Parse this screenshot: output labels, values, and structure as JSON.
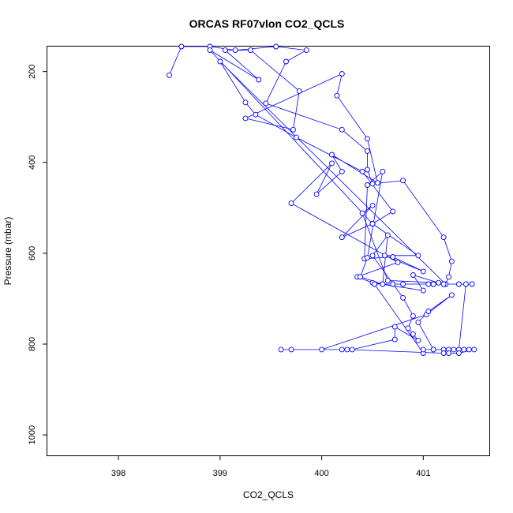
{
  "chart_data": {
    "type": "line",
    "title": "ORCAS RF07vlon CO2_QCLS",
    "xlabel": "CO2_QCLS",
    "ylabel": "Pressure (mbar)",
    "xlim": [
      397.3,
      401.65
    ],
    "ylim": [
      1045,
      145
    ],
    "y_inverted": true,
    "xticks": [
      398,
      399,
      400,
      401
    ],
    "yticks": [
      200,
      400,
      600,
      800,
      1000
    ],
    "grid": false,
    "series": [
      {
        "color": "#0000ff",
        "marker": "open-circle",
        "points": [
          [
            398.5,
            208
          ],
          [
            398.62,
            145
          ],
          [
            398.9,
            145
          ],
          [
            399.15,
            153
          ],
          [
            399.55,
            145
          ],
          [
            399.85,
            153
          ],
          [
            399.65,
            178
          ],
          [
            399.45,
            270
          ],
          [
            400.2,
            328
          ],
          [
            400.45,
            375
          ],
          [
            400.45,
            416
          ],
          [
            400.5,
            447
          ],
          [
            400.8,
            440
          ],
          [
            401.2,
            565
          ],
          [
            401.28,
            618
          ],
          [
            401.25,
            652
          ],
          [
            401.22,
            668
          ],
          [
            399.0,
            178
          ],
          [
            399.25,
            268
          ],
          [
            399.35,
            295
          ],
          [
            399.75,
            345
          ],
          [
            400.4,
            420
          ],
          [
            400.7,
            508
          ],
          [
            400.5,
            535
          ],
          [
            398.9,
            153
          ],
          [
            399.38,
            218
          ],
          [
            399.05,
            153
          ],
          [
            399.3,
            153
          ],
          [
            399.78,
            243
          ],
          [
            399.72,
            328
          ],
          [
            399.25,
            303
          ],
          [
            400.2,
            205
          ],
          [
            400.15,
            253
          ],
          [
            400.45,
            348
          ],
          [
            400.55,
            445
          ],
          [
            400.1,
            383
          ],
          [
            400.2,
            420
          ],
          [
            399.95,
            470
          ],
          [
            400.1,
            402
          ],
          [
            399.7,
            490
          ],
          [
            400.75,
            620
          ],
          [
            400.35,
            652
          ],
          [
            400.5,
            665
          ],
          [
            401.0,
            682
          ],
          [
            400.9,
            648
          ],
          [
            401.15,
            665
          ],
          [
            400.65,
            660
          ],
          [
            400.4,
            512
          ],
          [
            400.5,
            495
          ],
          [
            400.2,
            565
          ],
          [
            400.5,
            535
          ],
          [
            400.95,
            605
          ],
          [
            400.62,
            605
          ],
          [
            401.0,
            640
          ],
          [
            400.7,
            608
          ],
          [
            400.42,
            612
          ],
          [
            400.45,
            450
          ],
          [
            400.6,
            420
          ],
          [
            400.45,
            610
          ],
          [
            400.38,
            652
          ],
          [
            400.6,
            668
          ],
          [
            400.65,
            560
          ],
          [
            400.5,
            605
          ],
          [
            400.8,
            698
          ],
          [
            400.9,
            738
          ],
          [
            400.85,
            765
          ],
          [
            400.9,
            778
          ],
          [
            400.95,
            792
          ],
          [
            400.72,
            762
          ],
          [
            400.72,
            790
          ],
          [
            400.3,
            812
          ],
          [
            399.7,
            812
          ],
          [
            399.6,
            812
          ],
          [
            400.0,
            812
          ],
          [
            401.03,
            735
          ],
          [
            401.28,
            692
          ],
          [
            401.05,
            728
          ],
          [
            400.95,
            752
          ],
          [
            401.1,
            812
          ],
          [
            401.25,
            812
          ],
          [
            401.35,
            812
          ],
          [
            401.42,
            668
          ],
          [
            401.48,
            668
          ],
          [
            401.35,
            668
          ],
          [
            401.2,
            668
          ],
          [
            401.1,
            668
          ],
          [
            401.05,
            668
          ],
          [
            400.8,
            668
          ],
          [
            400.7,
            668
          ],
          [
            400.52,
            668
          ],
          [
            401.0,
            820
          ],
          [
            401.0,
            812
          ],
          [
            401.1,
            812
          ],
          [
            401.2,
            812
          ],
          [
            401.3,
            812
          ],
          [
            401.4,
            812
          ],
          [
            401.45,
            812
          ],
          [
            401.5,
            812
          ],
          [
            401.35,
            820
          ],
          [
            401.25,
            820
          ],
          [
            401.2,
            820
          ],
          [
            400.25,
            812
          ],
          [
            400.2,
            812
          ]
        ]
      }
    ]
  }
}
